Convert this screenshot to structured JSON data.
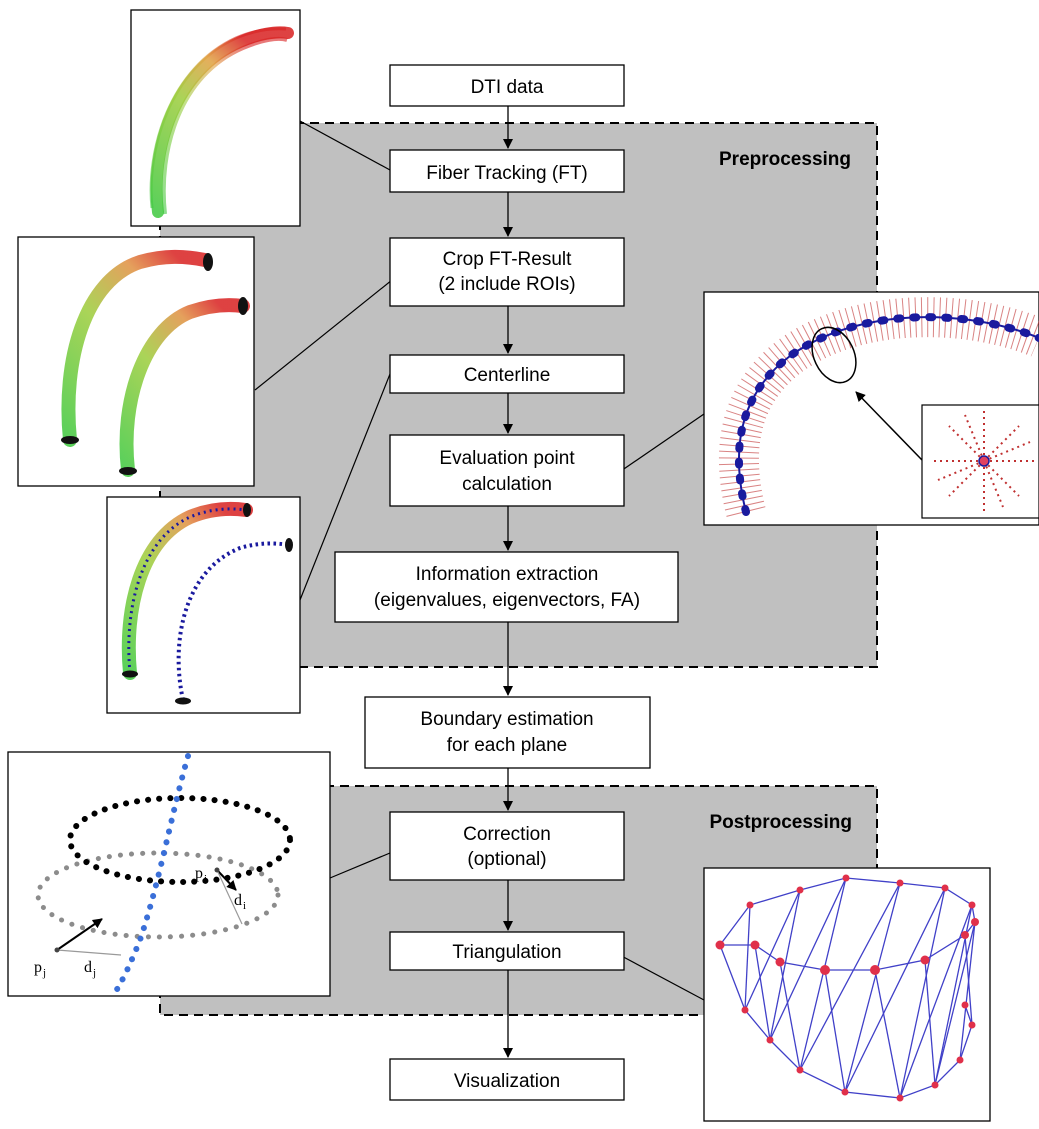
{
  "regions": {
    "preprocessing": "Preprocessing",
    "postprocessing": "Postprocessing"
  },
  "steps": {
    "dti_data": [
      "DTI data"
    ],
    "fiber_tracking": [
      "Fiber Tracking (FT)"
    ],
    "crop": [
      "Crop FT-Result",
      "(2 include ROIs)"
    ],
    "centerline": [
      "Centerline"
    ],
    "evaluation": [
      "Evaluation point",
      "calculation"
    ],
    "information": [
      "Information extraction",
      "(eigenvalues, eigenvectors, FA)"
    ],
    "boundary": [
      "Boundary estimation",
      "for each plane"
    ],
    "correction": [
      "Correction",
      "(optional)"
    ],
    "triangulation": [
      "Triangulation"
    ],
    "visualization": [
      "Visualization"
    ]
  },
  "correction_labels": {
    "p_i": "p",
    "p_i_sub": "i",
    "d_i": "d",
    "d_i_sub": "i",
    "p_j": "p",
    "p_j_sub": "j",
    "d_j": "d",
    "d_j_sub": "j"
  },
  "colors": {
    "region_fill": "#c0c0c0",
    "fiber_red": "#d82020",
    "fiber_green": "#3ec83e",
    "centerline_blue": "#1a1a9e",
    "ray_red": "#c03030",
    "mesh_blue": "#4040c8",
    "mesh_node_red": "#e0304a",
    "dot_black": "#000000",
    "dot_gray": "#8c8c8c",
    "dot_blue": "#3a6fd8"
  }
}
